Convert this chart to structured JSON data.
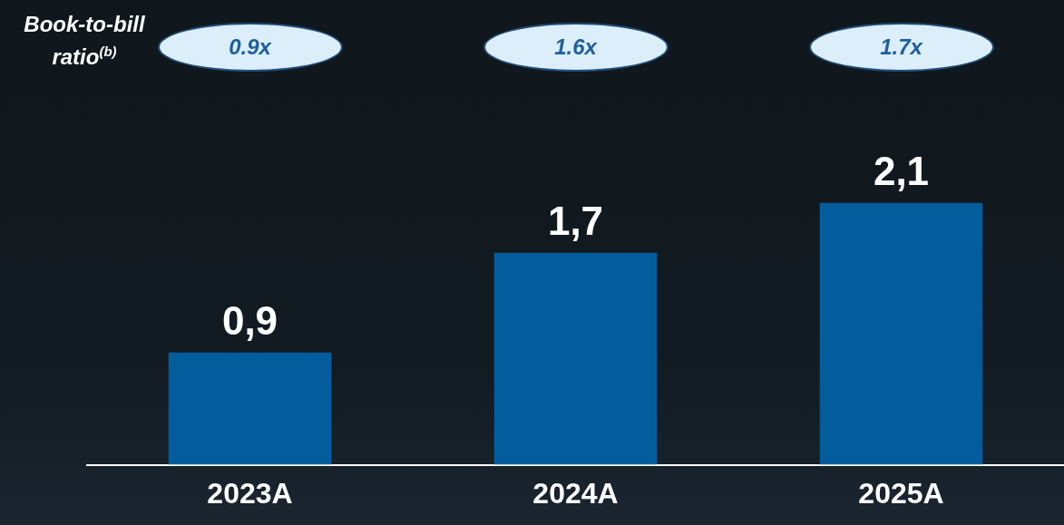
{
  "chart_data": {
    "type": "bar",
    "categories": [
      "2023A",
      "2024A",
      "2025A"
    ],
    "values": [
      0.9,
      1.7,
      2.1
    ],
    "value_labels": [
      "0,9",
      "1,7",
      "2,1"
    ],
    "color": "#035d9c",
    "tick_labels": "x",
    "grid": false,
    "legend": false,
    "annotations": [
      "Book-to-bill ratio$^{(b)}$",
      "0.9x",
      "1.6x",
      "1.7x"
    ]
  }
}
